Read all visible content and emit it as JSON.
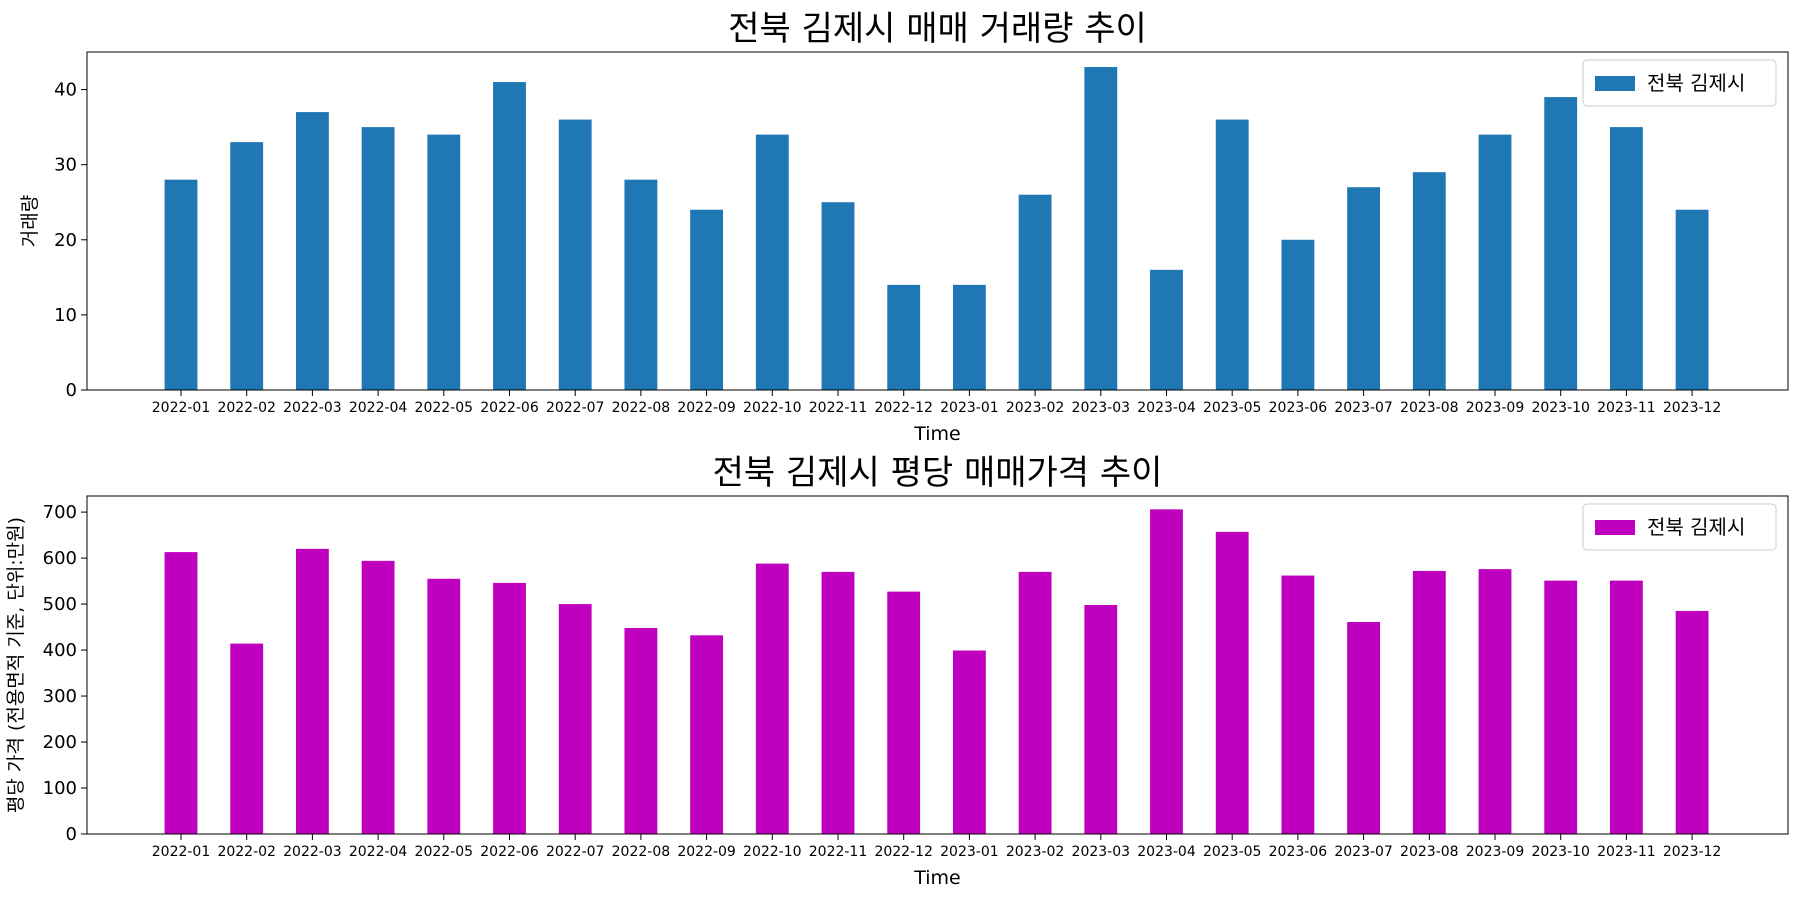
{
  "chart_data": [
    {
      "type": "bar",
      "title": "전북 김제시 매매 거래량 추이",
      "xlabel": "Time",
      "ylabel": "거래량",
      "ylim": [
        0,
        45
      ],
      "yticks": [
        0,
        10,
        20,
        30,
        40
      ],
      "legend_position": "top-right",
      "grid": false,
      "categories": [
        "2022-01",
        "2022-02",
        "2022-03",
        "2022-04",
        "2022-05",
        "2022-06",
        "2022-07",
        "2022-08",
        "2022-09",
        "2022-10",
        "2022-11",
        "2022-12",
        "2023-01",
        "2023-02",
        "2023-03",
        "2023-04",
        "2023-05",
        "2023-06",
        "2023-07",
        "2023-08",
        "2023-09",
        "2023-10",
        "2023-11",
        "2023-12"
      ],
      "series": [
        {
          "name": "전북 김제시",
          "color": "#1f77b4",
          "values": [
            28,
            33,
            37,
            35,
            34,
            41,
            36,
            28,
            24,
            34,
            25,
            14,
            14,
            26,
            43,
            16,
            36,
            20,
            27,
            29,
            34,
            39,
            35,
            24
          ]
        }
      ]
    },
    {
      "type": "bar",
      "title": "전북 김제시 평당 매매가격 추이",
      "xlabel": "Time",
      "ylabel": "평당 가격 (전용면적 기준, 단위:만원)",
      "ylim": [
        0,
        735
      ],
      "yticks": [
        0,
        100,
        200,
        300,
        400,
        500,
        600,
        700
      ],
      "legend_position": "top-right",
      "grid": false,
      "categories": [
        "2022-01",
        "2022-02",
        "2022-03",
        "2022-04",
        "2022-05",
        "2022-06",
        "2022-07",
        "2022-08",
        "2022-09",
        "2022-10",
        "2022-11",
        "2022-12",
        "2023-01",
        "2023-02",
        "2023-03",
        "2023-04",
        "2023-05",
        "2023-06",
        "2023-07",
        "2023-08",
        "2023-09",
        "2023-10",
        "2023-11",
        "2023-12"
      ],
      "series": [
        {
          "name": "전북 김제시",
          "color": "#bf00bf",
          "values": [
            613,
            414,
            620,
            594,
            555,
            546,
            500,
            448,
            432,
            588,
            570,
            527,
            399,
            570,
            498,
            706,
            657,
            562,
            461,
            572,
            576,
            551,
            551,
            485
          ]
        }
      ]
    }
  ]
}
